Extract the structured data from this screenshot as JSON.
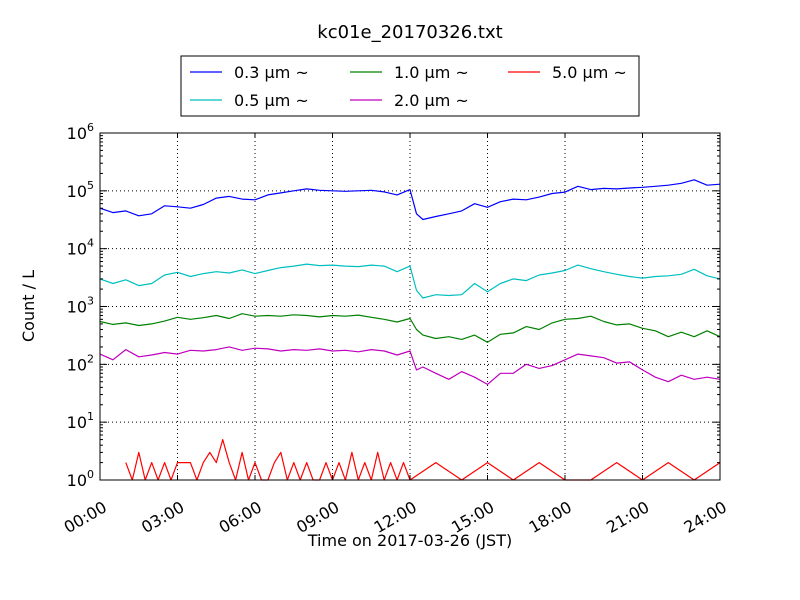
{
  "chart_data": {
    "type": "line",
    "title": "kc01e_20170326.txt",
    "xlabel": "Time on 2017-03-26 (JST)",
    "ylabel": "Count / L",
    "xlim": [
      "00:00",
      "24:00"
    ],
    "ylim": [
      1,
      1000000
    ],
    "yscale": "log",
    "grid": true,
    "legend_position": "top",
    "x_ticks": [
      "00:00",
      "03:00",
      "06:00",
      "09:00",
      "12:00",
      "15:00",
      "18:00",
      "21:00",
      "24:00"
    ],
    "y_ticks": [
      {
        "base": "10",
        "exp": "0",
        "value": 1
      },
      {
        "base": "10",
        "exp": "1",
        "value": 10
      },
      {
        "base": "10",
        "exp": "2",
        "value": 100
      },
      {
        "base": "10",
        "exp": "3",
        "value": 1000
      },
      {
        "base": "10",
        "exp": "4",
        "value": 10000
      },
      {
        "base": "10",
        "exp": "5",
        "value": 100000
      },
      {
        "base": "10",
        "exp": "6",
        "value": 1000000
      }
    ],
    "series": [
      {
        "name": "0.3 μm ~",
        "color": "#0000ff",
        "x": [
          "00:00",
          "00:30",
          "01:00",
          "01:30",
          "02:00",
          "02:30",
          "03:00",
          "03:30",
          "04:00",
          "04:30",
          "05:00",
          "05:30",
          "06:00",
          "06:30",
          "07:00",
          "07:30",
          "08:00",
          "08:30",
          "09:00",
          "09:30",
          "10:00",
          "10:30",
          "11:00",
          "11:30",
          "12:00",
          "12:15",
          "12:30",
          "13:00",
          "13:30",
          "14:00",
          "14:30",
          "15:00",
          "15:30",
          "16:00",
          "16:30",
          "17:00",
          "17:30",
          "18:00",
          "18:30",
          "19:00",
          "19:30",
          "20:00",
          "20:30",
          "21:00",
          "21:30",
          "22:00",
          "22:30",
          "23:00",
          "23:30",
          "24:00"
        ],
        "y": [
          50000,
          42000,
          45000,
          37000,
          40000,
          55000,
          53000,
          50000,
          58000,
          75000,
          80000,
          72000,
          70000,
          85000,
          92000,
          100000,
          108000,
          102000,
          100000,
          98000,
          100000,
          102000,
          96000,
          85000,
          105000,
          40000,
          32000,
          36000,
          40000,
          45000,
          60000,
          52000,
          65000,
          72000,
          70000,
          78000,
          90000,
          95000,
          120000,
          105000,
          110000,
          108000,
          112000,
          115000,
          120000,
          125000,
          135000,
          155000,
          125000,
          130000
        ]
      },
      {
        "name": "0.5 μm ~",
        "color": "#00bfbf",
        "x": [
          "00:00",
          "00:30",
          "01:00",
          "01:30",
          "02:00",
          "02:30",
          "03:00",
          "03:30",
          "04:00",
          "04:30",
          "05:00",
          "05:30",
          "06:00",
          "06:30",
          "07:00",
          "07:30",
          "08:00",
          "08:30",
          "09:00",
          "09:30",
          "10:00",
          "10:30",
          "11:00",
          "11:30",
          "12:00",
          "12:15",
          "12:30",
          "13:00",
          "13:30",
          "14:00",
          "14:30",
          "15:00",
          "15:30",
          "16:00",
          "16:30",
          "17:00",
          "17:30",
          "18:00",
          "18:30",
          "19:00",
          "19:30",
          "20:00",
          "20:30",
          "21:00",
          "21:30",
          "22:00",
          "22:30",
          "23:00",
          "23:30",
          "24:00"
        ],
        "y": [
          3000,
          2500,
          2900,
          2300,
          2500,
          3500,
          3900,
          3300,
          3700,
          4000,
          3800,
          4300,
          3700,
          4200,
          4700,
          5000,
          5400,
          5100,
          5200,
          5000,
          4900,
          5200,
          5000,
          4000,
          5000,
          1900,
          1400,
          1600,
          1550,
          1600,
          2500,
          1800,
          2500,
          3000,
          2800,
          3500,
          3800,
          4200,
          5200,
          4500,
          4000,
          3600,
          3300,
          3100,
          3300,
          3400,
          3600,
          4400,
          3400,
          3000
        ]
      },
      {
        "name": "1.0 μm ~",
        "color": "#008000",
        "x": [
          "00:00",
          "00:30",
          "01:00",
          "01:30",
          "02:00",
          "02:30",
          "03:00",
          "03:30",
          "04:00",
          "04:30",
          "05:00",
          "05:30",
          "06:00",
          "06:30",
          "07:00",
          "07:30",
          "08:00",
          "08:30",
          "09:00",
          "09:30",
          "10:00",
          "10:30",
          "11:00",
          "11:30",
          "12:00",
          "12:15",
          "12:30",
          "13:00",
          "13:30",
          "14:00",
          "14:30",
          "15:00",
          "15:30",
          "16:00",
          "16:30",
          "17:00",
          "17:30",
          "18:00",
          "18:30",
          "19:00",
          "19:30",
          "20:00",
          "20:30",
          "21:00",
          "21:30",
          "22:00",
          "22:30",
          "23:00",
          "23:30",
          "24:00"
        ],
        "y": [
          550,
          490,
          520,
          470,
          500,
          560,
          650,
          600,
          640,
          700,
          620,
          750,
          680,
          700,
          680,
          720,
          700,
          660,
          700,
          680,
          710,
          650,
          600,
          540,
          620,
          400,
          320,
          280,
          300,
          270,
          320,
          240,
          330,
          350,
          450,
          400,
          520,
          600,
          620,
          680,
          550,
          480,
          500,
          420,
          380,
          300,
          360,
          300,
          380,
          300
        ]
      },
      {
        "name": "2.0 μm ~",
        "color": "#bf00bf",
        "x": [
          "00:00",
          "00:30",
          "01:00",
          "01:30",
          "02:00",
          "02:30",
          "03:00",
          "03:30",
          "04:00",
          "04:30",
          "05:00",
          "05:30",
          "06:00",
          "06:30",
          "07:00",
          "07:30",
          "08:00",
          "08:30",
          "09:00",
          "09:30",
          "10:00",
          "10:30",
          "11:00",
          "11:30",
          "12:00",
          "12:15",
          "12:30",
          "13:00",
          "13:30",
          "14:00",
          "14:30",
          "15:00",
          "15:30",
          "16:00",
          "16:30",
          "17:00",
          "17:30",
          "18:00",
          "18:30",
          "19:00",
          "19:30",
          "20:00",
          "20:30",
          "21:00",
          "21:30",
          "22:00",
          "22:30",
          "23:00",
          "23:30",
          "24:00"
        ],
        "y": [
          150,
          120,
          180,
          135,
          145,
          160,
          150,
          175,
          170,
          180,
          200,
          175,
          190,
          185,
          170,
          180,
          175,
          185,
          170,
          175,
          165,
          180,
          170,
          145,
          170,
          80,
          90,
          70,
          55,
          75,
          60,
          45,
          70,
          70,
          100,
          85,
          95,
          120,
          150,
          140,
          130,
          105,
          110,
          80,
          60,
          50,
          65,
          55,
          60,
          55
        ]
      },
      {
        "name": "5.0 μm ~",
        "color": "#ff0000",
        "x": [
          "01:00",
          "01:15",
          "01:30",
          "01:45",
          "02:00",
          "02:15",
          "02:30",
          "02:45",
          "03:00",
          "03:15",
          "03:30",
          "03:45",
          "04:00",
          "04:15",
          "04:30",
          "04:45",
          "05:00",
          "05:15",
          "05:30",
          "05:45",
          "06:00",
          "06:15",
          "06:30",
          "06:45",
          "07:00",
          "07:15",
          "07:30",
          "07:45",
          "08:00",
          "08:15",
          "08:30",
          "08:45",
          "09:00",
          "09:15",
          "09:30",
          "09:45",
          "10:00",
          "10:15",
          "10:30",
          "10:45",
          "11:00",
          "11:15",
          "11:30",
          "11:45",
          "12:00",
          "13:00",
          "14:00",
          "15:00",
          "16:00",
          "17:00",
          "18:00",
          "19:00",
          "20:00",
          "21:00",
          "22:00",
          "23:00",
          "24:00"
        ],
        "y": [
          2,
          1,
          3,
          1,
          2,
          1,
          2,
          1,
          2,
          2,
          2,
          1,
          2,
          3,
          2,
          5,
          2,
          1,
          3,
          1,
          2,
          1,
          1,
          2,
          3,
          1,
          2,
          1,
          2,
          1,
          1,
          2,
          1,
          2,
          1,
          3,
          1,
          2,
          1,
          3,
          1,
          2,
          1,
          2,
          1,
          2,
          1,
          2,
          1,
          2,
          1,
          1,
          2,
          1,
          2,
          1,
          2
        ]
      }
    ]
  }
}
